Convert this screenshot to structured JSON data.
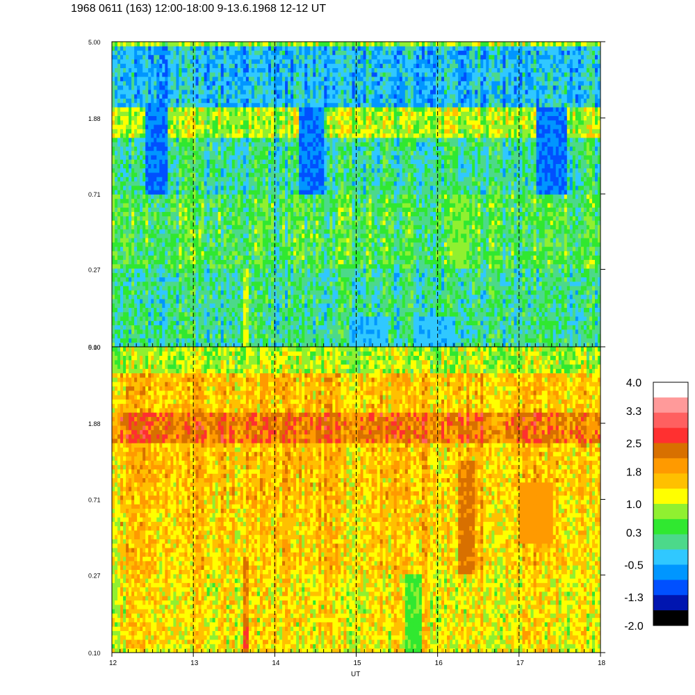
{
  "title": "1968 0611 (163) 12:00-18:00 9-13.6.1968  12-12 UT",
  "colors": {
    "palette": [
      "#000000",
      "#0015b0",
      "#0050ff",
      "#0096ff",
      "#30c8ff",
      "#4cd98a",
      "#30e830",
      "#90f030",
      "#ffff00",
      "#ffc000",
      "#ff9a00",
      "#d87000",
      "#ff3030",
      "#ff6060",
      "#ff9a9a",
      "#ffffff"
    ]
  },
  "chart_data": [
    {
      "type": "heatmap",
      "panel": "top",
      "xlabel": "",
      "ylabel": "",
      "x_ticks": [
        "12",
        "13",
        "14",
        "15",
        "16",
        "17",
        "18"
      ],
      "y_ticks": [
        "5.00",
        "1.88",
        "0.71",
        "0.27",
        "0.10"
      ],
      "xlim": [
        12,
        18
      ],
      "ylim": [
        0.1,
        5.0
      ],
      "y_scale": "log",
      "dashed_vertical_lines_at": [
        13,
        14,
        15,
        16,
        17
      ],
      "grid": false,
      "dominant_level_by_band": [
        {
          "y_range": [
            0.1,
            0.27
          ],
          "level": 0.0
        },
        {
          "y_range": [
            0.27,
            0.71
          ],
          "level": 0.3
        },
        {
          "y_range": [
            0.71,
            1.5
          ],
          "level": 0.0
        },
        {
          "y_range": [
            1.5,
            2.2
          ],
          "level": 0.9
        },
        {
          "y_range": [
            2.2,
            4.6
          ],
          "level": -0.5
        },
        {
          "y_range": [
            4.6,
            4.9
          ],
          "level": 0.8
        },
        {
          "y_range": [
            4.9,
            5.0
          ],
          "level": 0.2
        }
      ],
      "features": [
        {
          "x": 13.65,
          "y_range": [
            0.1,
            0.27
          ],
          "level": 1.0
        },
        {
          "x_range": [
            16.2,
            16.4
          ],
          "y_range": [
            0.27,
            0.71
          ],
          "level": 0.7
        },
        {
          "x_range": [
            12.4,
            12.7
          ],
          "y_range": [
            0.71,
            2.2
          ],
          "level": -1.0
        },
        {
          "x_range": [
            14.3,
            14.6
          ],
          "y_range": [
            0.71,
            2.2
          ],
          "level": -1.0
        },
        {
          "x_range": [
            17.2,
            17.6
          ],
          "y_range": [
            0.71,
            2.2
          ],
          "level": -1.0
        },
        {
          "x_range": [
            14.9,
            15.4
          ],
          "y_range": [
            0.1,
            0.15
          ],
          "level": -0.5
        },
        {
          "x_range": [
            15.7,
            16.2
          ],
          "y_range": [
            0.1,
            0.15
          ],
          "level": -0.5
        }
      ]
    },
    {
      "type": "heatmap",
      "panel": "bottom",
      "xlabel": "UT",
      "ylabel": "",
      "x_ticks": [
        "12",
        "13",
        "14",
        "15",
        "16",
        "17",
        "18"
      ],
      "y_ticks": [
        "5.00",
        "1.88",
        "0.71",
        "0.27",
        "0.10"
      ],
      "xlim": [
        12,
        18
      ],
      "ylim": [
        0.1,
        5.0
      ],
      "y_scale": "log",
      "dashed_vertical_lines_at": [
        13,
        14,
        15,
        16,
        17
      ],
      "grid": false,
      "dominant_level_by_band": [
        {
          "y_range": [
            0.1,
            0.27
          ],
          "level": 1.3
        },
        {
          "y_range": [
            0.27,
            0.71
          ],
          "level": 1.5
        },
        {
          "y_range": [
            0.71,
            1.5
          ],
          "level": 1.6
        },
        {
          "y_range": [
            1.5,
            2.2
          ],
          "level": 2.3
        },
        {
          "y_range": [
            2.2,
            3.5
          ],
          "level": 1.6
        },
        {
          "y_range": [
            3.5,
            5.0
          ],
          "level": 0.9
        }
      ],
      "features": [
        {
          "x": 13.65,
          "y_range": [
            0.1,
            0.16
          ],
          "level": 2.6
        },
        {
          "x": 13.65,
          "y_range": [
            0.16,
            0.35
          ],
          "level": 2.2
        },
        {
          "x_range": [
            16.25,
            16.45
          ],
          "y_range": [
            0.27,
            1.2
          ],
          "level": 2.3
        },
        {
          "x_range": [
            17.0,
            17.4
          ],
          "y_range": [
            0.4,
            0.9
          ],
          "level": 2.0
        },
        {
          "x_range": [
            15.6,
            15.8
          ],
          "y_range": [
            0.1,
            0.27
          ],
          "level": 0.5
        }
      ]
    }
  ],
  "colorbar": {
    "labels": [
      "4.0",
      "3.3",
      "2.5",
      "1.8",
      "1.0",
      "0.3",
      "-0.5",
      "-1.3",
      "-2.0"
    ],
    "min": -2.0,
    "max": 4.0
  }
}
